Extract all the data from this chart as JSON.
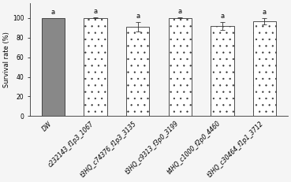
{
  "categories": [
    "DW",
    "c232143_f1p3_1067",
    "t3HQ_c74376_f1p3_3135",
    "t3HQ_c9313_f3p0_3199",
    "t4HQ_c1000_f2p0_4460",
    "t3HQ_c30464_f1p1_3712"
  ],
  "values": [
    100.0,
    100.0,
    91.0,
    100.0,
    91.5,
    96.5
  ],
  "errors": [
    0.0,
    0.5,
    4.5,
    0.5,
    4.0,
    3.0
  ],
  "letters": [
    "a",
    "a",
    "a",
    "a",
    "a",
    "a"
  ],
  "bar_colors": [
    "#888888",
    "#ffffff",
    "#ffffff",
    "#ffffff",
    "#ffffff",
    "#ffffff"
  ],
  "bar_edge_colors": [
    "#333333",
    "#333333",
    "#333333",
    "#333333",
    "#333333",
    "#333333"
  ],
  "hatch_patterns": [
    "",
    "..",
    "..",
    "..",
    "..",
    ".."
  ],
  "ylabel": "Survival rate (%)",
  "ylim": [
    0,
    115
  ],
  "yticks": [
    0,
    20,
    40,
    60,
    80,
    100
  ],
  "letter_fontsize": 6,
  "axis_label_fontsize": 6,
  "tick_fontsize": 5.5,
  "bar_width": 0.55,
  "background_color": "#f5f5f5"
}
